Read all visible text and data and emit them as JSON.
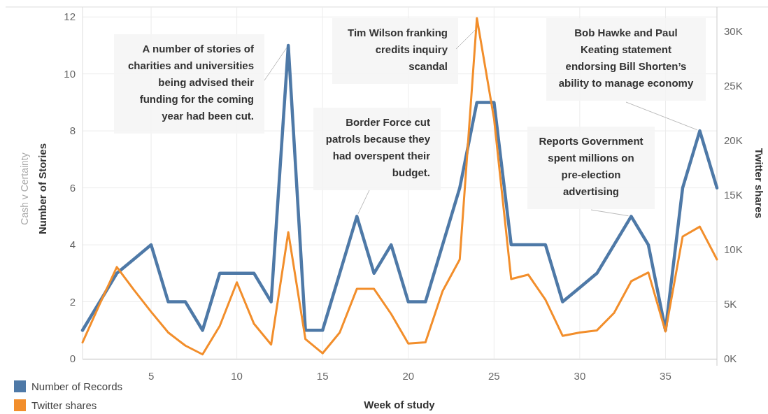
{
  "chart_data": {
    "type": "line",
    "title": "Cash v Certainty",
    "xlabel": "Week of study",
    "ylabel": "Number of Stories",
    "y2label": "Twitter shares",
    "x": [
      1,
      2,
      3,
      4,
      5,
      6,
      7,
      8,
      9,
      10,
      11,
      12,
      13,
      14,
      15,
      16,
      17,
      18,
      19,
      20,
      21,
      22,
      23,
      24,
      25,
      26,
      27,
      28,
      29,
      30,
      31,
      32,
      33,
      34,
      35,
      36,
      37,
      38
    ],
    "series": [
      {
        "name": "Number of Records",
        "color": "#4e79a7",
        "values": [
          1,
          2,
          3,
          3.5,
          4,
          2,
          2,
          1,
          3,
          3,
          3,
          2,
          11,
          1,
          1,
          3,
          5,
          3,
          4,
          2,
          2,
          4,
          6,
          9,
          9,
          4,
          4,
          4,
          2,
          2.5,
          3,
          4,
          5,
          4,
          1,
          6,
          8,
          6
        ]
      },
      {
        "name": "Twitter shares",
        "color": "#f28e2b",
        "axis": "y2",
        "values": [
          1500,
          5000,
          8400,
          6300,
          4300,
          2400,
          1200,
          400,
          3000,
          7000,
          3200,
          1300,
          11600,
          1800,
          500,
          2400,
          6400,
          6400,
          4100,
          1400,
          1500,
          6200,
          9100,
          31200,
          22000,
          7300,
          7700,
          5400,
          2100,
          2400,
          2600,
          4200,
          7100,
          7900,
          2500,
          11200,
          12100,
          9100
        ]
      }
    ],
    "xlim": [
      1,
      38
    ],
    "xticks": [
      5,
      10,
      15,
      20,
      25,
      30,
      35
    ],
    "ylim": [
      0,
      12.3
    ],
    "yticks": [
      0,
      2,
      4,
      6,
      8,
      10,
      12
    ],
    "y2lim": [
      0,
      32100
    ],
    "y2ticks": [
      {
        "value": 0,
        "label": "0K"
      },
      {
        "value": 5000,
        "label": "5K"
      },
      {
        "value": 10000,
        "label": "10K"
      },
      {
        "value": 15000,
        "label": "15K"
      },
      {
        "value": 20000,
        "label": "20K"
      },
      {
        "value": 25000,
        "label": "25K"
      },
      {
        "value": 30000,
        "label": "30K"
      }
    ],
    "annotations": [
      {
        "text": "A number of stories of charities and universities being advised their funding for the coming year had been cut.",
        "x": 13,
        "y": 11
      },
      {
        "text": "Tim Wilson franking credits inquiry scandal",
        "x": 24,
        "y": 11.6
      },
      {
        "text": "Border Force cut patrols because they had overspent their budget.",
        "x": 17,
        "y": 5
      },
      {
        "text": "Reports Government spent millions on pre-election advertising",
        "x": 33,
        "y": 5
      },
      {
        "text": "Bob Hawke and Paul Keating statement endorsing Bill Shorten’s ability to manage economy",
        "x": 37,
        "y": 8
      }
    ],
    "grid": true,
    "legend": "bottom left",
    "marker": "none",
    "line_style": "solid"
  }
}
